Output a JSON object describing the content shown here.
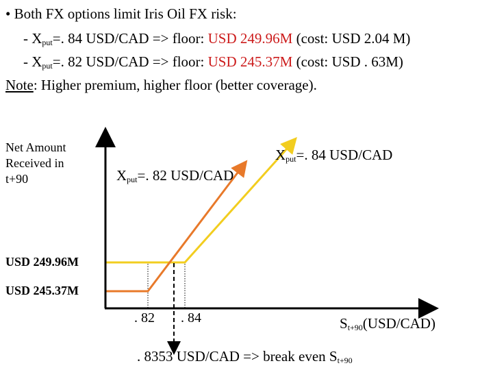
{
  "bullets": {
    "line1": "• Both FX options limit Iris Oil FX risk:",
    "put84": {
      "prefix": "- X",
      "sub": "put",
      "mid": "=. 84 USD/CAD  =>  floor: ",
      "floor": "USD 249.96M",
      "cost": " (cost: USD 2.04 M)"
    },
    "put82": {
      "prefix": "- X",
      "sub": "put",
      "mid": "=. 82 USD/CAD  =>  floor: ",
      "floor": "USD 245.37M",
      "cost": " (cost: USD . 63M)"
    },
    "note_label": "Note",
    "note_text": ": Higher premium, higher floor (better coverage)."
  },
  "diagram": {
    "ylabel": "Net Amount Received in t+90",
    "level_high": "USD 249.96M",
    "level_low": "USD 245.37M",
    "tick_82": ". 82",
    "tick_84": ". 84",
    "xlabel_main": "S",
    "xlabel_sub": "t+90",
    "xlabel_unit": "(USD/CAD)",
    "curve84": {
      "prefix": "X",
      "sub": "put",
      "rest": "=. 84 USD/CAD"
    },
    "curve82": {
      "prefix": "X",
      "sub": "put",
      "rest": "=. 82 USD/CAD"
    },
    "breakeven": {
      "text": ". 8353 USD/CAD => break even S",
      "sub": "t+90"
    },
    "colors": {
      "put84": "#f2cd1f",
      "put82": "#e8792a",
      "axis": "#000000",
      "floor_text": "#cc1b1b"
    }
  }
}
